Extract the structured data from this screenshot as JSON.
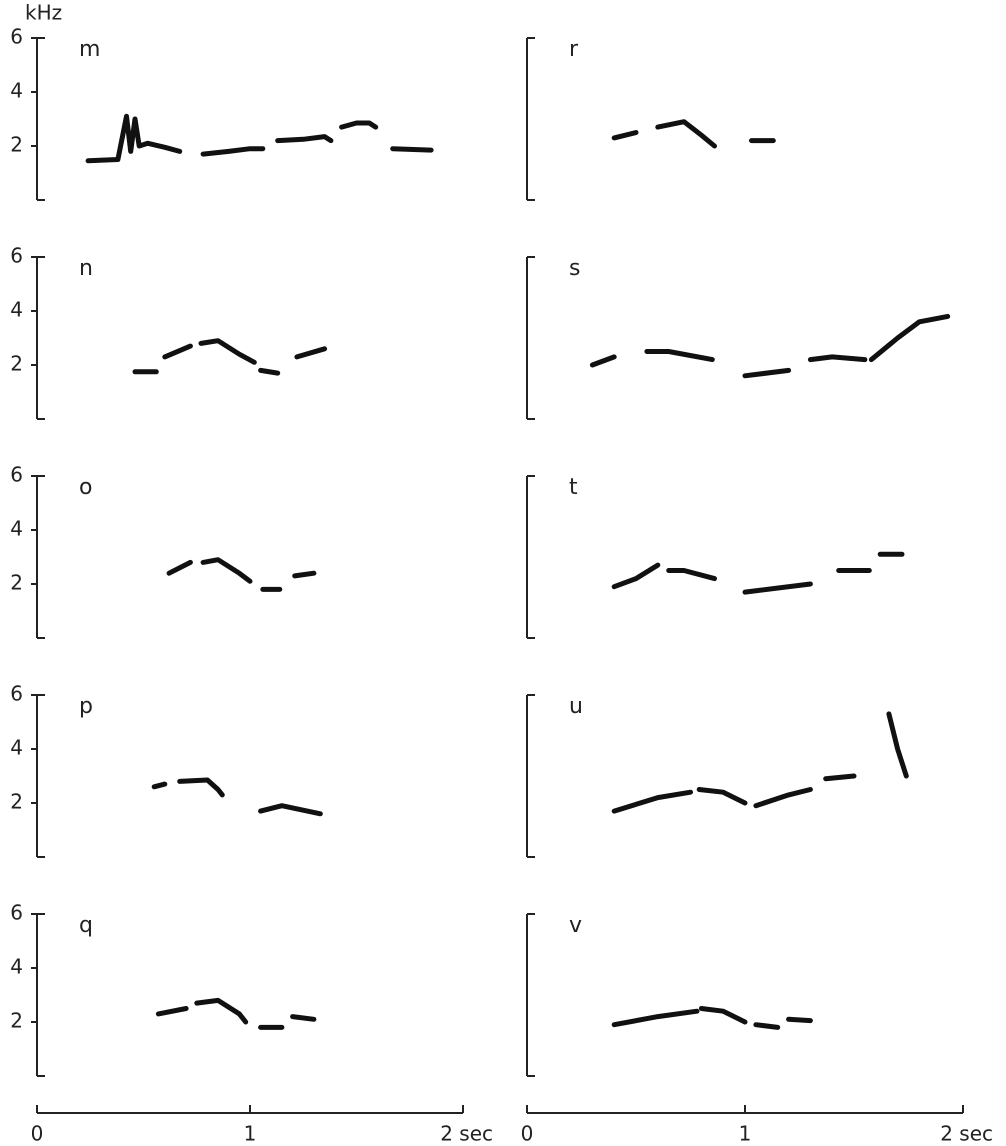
{
  "chart_data": [
    {
      "type": "line",
      "label": "m",
      "ylabel": "kHz",
      "ylim": [
        0,
        6
      ],
      "yticks": [
        2,
        4,
        6
      ],
      "xlim": [
        0,
        2
      ],
      "series": [
        {
          "color": "#111",
          "x": [
            0.24,
            0.38,
            0.42,
            0.44,
            0.46,
            0.48,
            0.52,
            0.6,
            0.67,
            null,
            0.78,
            0.9,
            1.0,
            1.06,
            null,
            1.13,
            1.25,
            1.35,
            1.38,
            null,
            1.43,
            1.5,
            1.56,
            1.59,
            null,
            1.67,
            1.85
          ],
          "values": [
            1.45,
            1.5,
            3.1,
            1.8,
            3.0,
            2.0,
            2.1,
            1.95,
            1.8,
            null,
            1.7,
            1.8,
            1.9,
            1.9,
            null,
            2.2,
            2.25,
            2.35,
            2.2,
            null,
            2.7,
            2.85,
            2.85,
            2.7,
            null,
            1.9,
            1.85
          ]
        }
      ]
    },
    {
      "type": "line",
      "label": "n",
      "ylim": [
        0,
        6
      ],
      "yticks": [
        2,
        4,
        6
      ],
      "xlim": [
        0,
        2
      ],
      "series": [
        {
          "color": "#111",
          "x": [
            0.46,
            0.56,
            null,
            0.6,
            0.72,
            null,
            0.77,
            0.85,
            0.95,
            1.02,
            null,
            1.05,
            1.13,
            null,
            1.22,
            1.35
          ],
          "values": [
            1.75,
            1.75,
            null,
            2.3,
            2.7,
            null,
            2.8,
            2.9,
            2.4,
            2.1,
            null,
            1.8,
            1.7,
            null,
            2.3,
            2.6
          ]
        }
      ]
    },
    {
      "type": "line",
      "label": "o",
      "ylim": [
        0,
        6
      ],
      "yticks": [
        2,
        4,
        6
      ],
      "xlim": [
        0,
        2
      ],
      "series": [
        {
          "color": "#111",
          "x": [
            0.62,
            0.72,
            null,
            0.78,
            0.85,
            0.95,
            1.0,
            null,
            1.06,
            1.14,
            null,
            1.21,
            1.3
          ],
          "values": [
            2.4,
            2.8,
            null,
            2.8,
            2.9,
            2.4,
            2.1,
            null,
            1.8,
            1.8,
            null,
            2.3,
            2.4
          ]
        }
      ]
    },
    {
      "type": "line",
      "label": "p",
      "ylim": [
        0,
        6
      ],
      "yticks": [
        2,
        4,
        6
      ],
      "xlim": [
        0,
        2
      ],
      "series": [
        {
          "color": "#111",
          "x": [
            0.55,
            0.6,
            null,
            0.67,
            0.8,
            0.85,
            0.87,
            null,
            1.05,
            1.15,
            1.33
          ],
          "values": [
            2.6,
            2.7,
            null,
            2.8,
            2.85,
            2.5,
            2.3,
            null,
            1.7,
            1.9,
            1.6
          ]
        }
      ]
    },
    {
      "type": "line",
      "label": "q",
      "ylim": [
        0,
        6
      ],
      "yticks": [
        2,
        4,
        6
      ],
      "xlim": [
        0,
        2
      ],
      "xticks": [
        0,
        1,
        {
          "value": 2,
          "label": "2 sec"
        }
      ],
      "series": [
        {
          "color": "#111",
          "x": [
            0.57,
            0.7,
            null,
            0.75,
            0.85,
            0.95,
            0.98,
            null,
            1.05,
            1.15,
            null,
            1.2,
            1.3
          ],
          "values": [
            2.3,
            2.5,
            null,
            2.7,
            2.8,
            2.3,
            2.0,
            null,
            1.8,
            1.8,
            null,
            2.2,
            2.1
          ]
        }
      ]
    },
    {
      "type": "line",
      "label": "r",
      "ylim": [
        0,
        6
      ],
      "xlim": [
        0,
        2
      ],
      "series": [
        {
          "color": "#111",
          "x": [
            0.4,
            0.5,
            null,
            0.6,
            0.72,
            0.8,
            0.86,
            null,
            1.03,
            1.13
          ],
          "values": [
            2.3,
            2.5,
            null,
            2.7,
            2.9,
            2.4,
            2.0,
            null,
            2.2,
            2.2
          ]
        }
      ]
    },
    {
      "type": "line",
      "label": "s",
      "ylim": [
        0,
        6
      ],
      "xlim": [
        0,
        2
      ],
      "series": [
        {
          "color": "#111",
          "x": [
            0.3,
            0.4,
            null,
            0.55,
            0.65,
            0.85,
            null,
            1.0,
            1.2,
            null,
            1.3,
            1.4,
            1.55,
            null,
            1.58,
            1.7,
            1.8,
            1.93
          ],
          "values": [
            2.0,
            2.3,
            null,
            2.5,
            2.5,
            2.2,
            null,
            1.6,
            1.8,
            null,
            2.2,
            2.3,
            2.2,
            null,
            2.2,
            3.0,
            3.6,
            3.8
          ]
        }
      ]
    },
    {
      "type": "line",
      "label": "t",
      "ylim": [
        0,
        6
      ],
      "xlim": [
        0,
        2
      ],
      "series": [
        {
          "color": "#111",
          "x": [
            0.4,
            0.5,
            0.6,
            null,
            0.65,
            0.72,
            0.86,
            null,
            1.0,
            1.3,
            null,
            1.43,
            1.57,
            null,
            1.62,
            1.72
          ],
          "values": [
            1.9,
            2.2,
            2.7,
            null,
            2.5,
            2.5,
            2.2,
            null,
            1.7,
            2.0,
            null,
            2.5,
            2.5,
            null,
            3.1,
            3.1
          ]
        }
      ]
    },
    {
      "type": "line",
      "label": "u",
      "ylim": [
        0,
        6
      ],
      "xlim": [
        0,
        2
      ],
      "series": [
        {
          "color": "#111",
          "x": [
            0.4,
            0.6,
            0.75,
            null,
            0.79,
            0.9,
            1.0,
            null,
            1.05,
            1.2,
            1.3,
            null,
            1.37,
            1.5,
            null,
            1.66,
            1.7,
            1.74
          ],
          "values": [
            1.7,
            2.2,
            2.4,
            null,
            2.5,
            2.4,
            2.0,
            null,
            1.9,
            2.3,
            2.5,
            null,
            2.9,
            3.0,
            null,
            5.3,
            4.0,
            3.0
          ]
        }
      ]
    },
    {
      "type": "line",
      "label": "v",
      "ylim": [
        0,
        6
      ],
      "xlim": [
        0,
        2
      ],
      "xticks": [
        0,
        1,
        {
          "value": 2,
          "label": "2 sec"
        }
      ],
      "series": [
        {
          "color": "#111",
          "x": [
            0.4,
            0.6,
            0.78,
            null,
            0.8,
            0.9,
            1.0,
            null,
            1.05,
            1.15,
            null,
            1.2,
            1.3
          ],
          "values": [
            1.9,
            2.2,
            2.4,
            null,
            2.5,
            2.4,
            2.0,
            null,
            1.9,
            1.8,
            null,
            2.1,
            2.05
          ]
        }
      ]
    }
  ]
}
